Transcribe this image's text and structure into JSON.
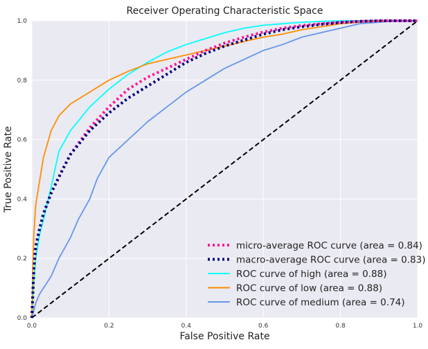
{
  "chart_data": {
    "type": "line",
    "title": "Receiver Operating Characteristic Space",
    "xlabel": "False Positive Rate",
    "ylabel": "True Positive Rate",
    "xlim": [
      0.0,
      1.0
    ],
    "ylim": [
      0.0,
      1.0
    ],
    "grid": true,
    "legend_position": "lower-right",
    "x_ticks": [
      "0.0",
      "0.2",
      "0.4",
      "0.6",
      "0.8",
      "1.0"
    ],
    "y_ticks": [
      "0.0",
      "0.2",
      "0.4",
      "0.6",
      "0.8",
      "1.0"
    ],
    "series": [
      {
        "name": "micro-average ROC curve (area = 0.84)",
        "color": "#ff1493",
        "style": "dotted",
        "x": [
          0.0,
          0.005,
          0.01,
          0.02,
          0.03,
          0.05,
          0.08,
          0.1,
          0.15,
          0.2,
          0.25,
          0.3,
          0.35,
          0.4,
          0.45,
          0.5,
          0.55,
          0.6,
          0.65,
          0.7,
          0.75,
          0.8,
          0.85,
          0.9,
          0.95,
          1.0
        ],
        "y": [
          0.0,
          0.16,
          0.24,
          0.3,
          0.35,
          0.42,
          0.5,
          0.55,
          0.64,
          0.71,
          0.77,
          0.81,
          0.84,
          0.87,
          0.9,
          0.925,
          0.945,
          0.962,
          0.975,
          0.984,
          0.99,
          0.995,
          0.998,
          1.0,
          1.0,
          1.0
        ]
      },
      {
        "name": "macro-average ROC curve (area = 0.83)",
        "color": "#000080",
        "style": "dotted",
        "x": [
          0.0,
          0.005,
          0.01,
          0.02,
          0.03,
          0.05,
          0.08,
          0.1,
          0.15,
          0.2,
          0.25,
          0.3,
          0.35,
          0.4,
          0.45,
          0.5,
          0.55,
          0.6,
          0.65,
          0.7,
          0.75,
          0.8,
          0.85,
          0.9,
          0.95,
          1.0
        ],
        "y": [
          0.0,
          0.16,
          0.24,
          0.3,
          0.35,
          0.42,
          0.5,
          0.55,
          0.63,
          0.69,
          0.74,
          0.78,
          0.82,
          0.86,
          0.89,
          0.915,
          0.935,
          0.955,
          0.97,
          0.98,
          0.988,
          0.994,
          0.998,
          1.0,
          1.0,
          1.0
        ]
      },
      {
        "name": "ROC curve of high (area = 0.88)",
        "color": "#00ffff",
        "style": "solid",
        "x": [
          0.0,
          0.005,
          0.01,
          0.02,
          0.03,
          0.05,
          0.07,
          0.1,
          0.15,
          0.2,
          0.25,
          0.3,
          0.35,
          0.4,
          0.45,
          0.5,
          0.55,
          0.6,
          0.65,
          0.7,
          0.75,
          0.8,
          0.85,
          0.9,
          0.95,
          1.0
        ],
        "y": [
          0.0,
          0.12,
          0.2,
          0.28,
          0.33,
          0.44,
          0.56,
          0.63,
          0.71,
          0.77,
          0.82,
          0.86,
          0.895,
          0.92,
          0.94,
          0.96,
          0.975,
          0.985,
          0.99,
          0.995,
          0.998,
          1.0,
          1.0,
          1.0,
          1.0,
          1.0
        ]
      },
      {
        "name": "ROC curve of low (area = 0.88)",
        "color": "#ff8c00",
        "style": "solid",
        "x": [
          0.0,
          0.003,
          0.005,
          0.01,
          0.02,
          0.03,
          0.05,
          0.07,
          0.1,
          0.15,
          0.2,
          0.25,
          0.3,
          0.35,
          0.4,
          0.45,
          0.5,
          0.55,
          0.6,
          0.65,
          0.7,
          0.75,
          0.8,
          0.85,
          0.9,
          0.95,
          1.0
        ],
        "y": [
          0.0,
          0.2,
          0.28,
          0.38,
          0.46,
          0.54,
          0.63,
          0.68,
          0.72,
          0.76,
          0.8,
          0.83,
          0.855,
          0.87,
          0.885,
          0.9,
          0.915,
          0.93,
          0.945,
          0.955,
          0.97,
          0.98,
          0.99,
          0.995,
          1.0,
          1.0,
          1.0
        ]
      },
      {
        "name": "ROC curve of medium (area = 0.74)",
        "color": "#6495ed",
        "style": "solid",
        "x": [
          0.0,
          0.01,
          0.02,
          0.03,
          0.05,
          0.07,
          0.1,
          0.12,
          0.15,
          0.17,
          0.2,
          0.25,
          0.3,
          0.35,
          0.4,
          0.45,
          0.5,
          0.55,
          0.6,
          0.65,
          0.7,
          0.75,
          0.8,
          0.85,
          0.9,
          0.95,
          1.0
        ],
        "y": [
          0.0,
          0.05,
          0.08,
          0.1,
          0.14,
          0.2,
          0.27,
          0.33,
          0.4,
          0.47,
          0.54,
          0.6,
          0.66,
          0.71,
          0.76,
          0.8,
          0.84,
          0.87,
          0.9,
          0.92,
          0.945,
          0.96,
          0.975,
          0.99,
          0.995,
          1.0,
          1.0
        ]
      },
      {
        "name": "",
        "color": "#000000",
        "style": "dashed",
        "x": [
          0.0,
          1.0
        ],
        "y": [
          0.0,
          1.0
        ]
      }
    ]
  }
}
